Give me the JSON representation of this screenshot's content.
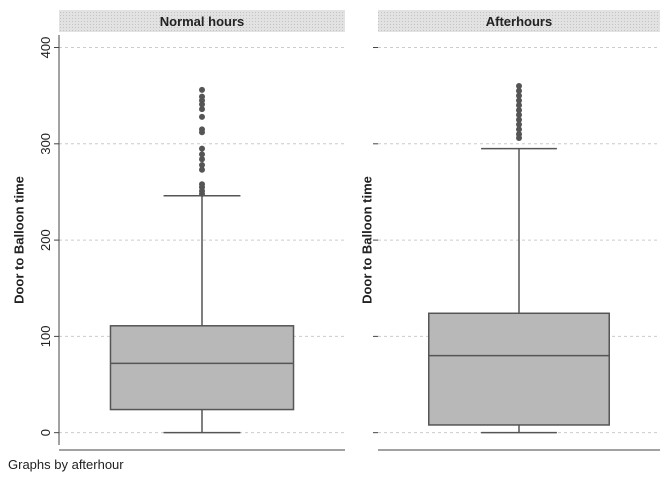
{
  "chart_data": [
    {
      "type": "box",
      "title": "Normal hours",
      "y_label": "Door to Balloon time",
      "ylim": [
        -18,
        413
      ],
      "yticks": [
        0,
        100,
        200,
        300,
        400
      ],
      "show_tick_labels": true,
      "grid": true,
      "color": "#b8b8b8",
      "box": {
        "min": 0,
        "q1": 24,
        "median": 72,
        "q3": 111,
        "max": 246,
        "outliers": [
          356,
          349,
          345,
          341,
          336,
          328,
          315,
          312,
          295,
          289,
          284,
          278,
          273,
          258,
          255,
          251,
          248
        ]
      }
    },
    {
      "type": "box",
      "title": "Afterhours",
      "y_label": "Door to Balloon time",
      "ylim": [
        -18,
        413
      ],
      "yticks": [
        0,
        100,
        200,
        300,
        400
      ],
      "show_tick_labels": false,
      "grid": true,
      "color": "#b8b8b8",
      "box": {
        "min": 0,
        "q1": 8,
        "median": 80,
        "q3": 124,
        "max": 295,
        "outliers": [
          360,
          355,
          350,
          345,
          340,
          335,
          330,
          325,
          320,
          315,
          310,
          306
        ]
      }
    }
  ],
  "note": "Graphs by afterhour"
}
